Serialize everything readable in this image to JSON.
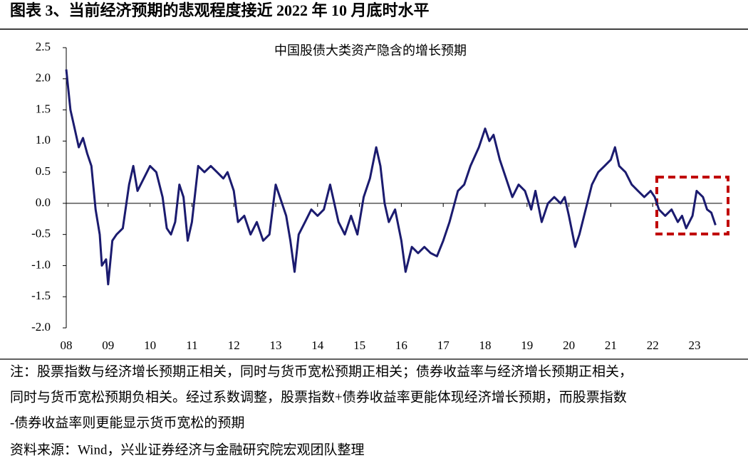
{
  "figure_title": "图表 3、当前经济预期的悲观程度接近 2022 年 10 月底时水平",
  "chart_data": {
    "type": "line",
    "title": "中国股债大类资产隐含的增长预期",
    "x": [
      2008.0,
      2008.1,
      2008.2,
      2008.3,
      2008.4,
      2008.5,
      2008.6,
      2008.7,
      2008.8,
      2008.85,
      2008.95,
      2009.0,
      2009.1,
      2009.2,
      2009.35,
      2009.5,
      2009.6,
      2009.7,
      2009.85,
      2010.0,
      2010.15,
      2010.3,
      2010.4,
      2010.5,
      2010.6,
      2010.7,
      2010.8,
      2010.9,
      2011.0,
      2011.15,
      2011.3,
      2011.45,
      2011.6,
      2011.75,
      2011.85,
      2012.0,
      2012.1,
      2012.25,
      2012.4,
      2012.55,
      2012.7,
      2012.85,
      2013.0,
      2013.1,
      2013.25,
      2013.35,
      2013.45,
      2013.55,
      2013.7,
      2013.85,
      2014.0,
      2014.15,
      2014.3,
      2014.5,
      2014.65,
      2014.8,
      2014.95,
      2015.1,
      2015.25,
      2015.4,
      2015.5,
      2015.6,
      2015.7,
      2015.85,
      2016.0,
      2016.1,
      2016.25,
      2016.4,
      2016.55,
      2016.7,
      2016.85,
      2017.0,
      2017.15,
      2017.35,
      2017.5,
      2017.65,
      2017.85,
      2018.0,
      2018.1,
      2018.2,
      2018.35,
      2018.5,
      2018.65,
      2018.8,
      2018.95,
      2019.1,
      2019.2,
      2019.35,
      2019.5,
      2019.65,
      2019.8,
      2019.9,
      2020.0,
      2020.15,
      2020.25,
      2020.4,
      2020.55,
      2020.7,
      2020.85,
      2021.0,
      2021.1,
      2021.2,
      2021.35,
      2021.5,
      2021.65,
      2021.8,
      2021.95,
      2022.05,
      2022.15,
      2022.3,
      2022.45,
      2022.6,
      2022.7,
      2022.8,
      2022.95,
      2023.05,
      2023.2,
      2023.3,
      2023.4,
      2023.5
    ],
    "series": [
      {
        "color": "#1b1b6f",
        "values": [
          2.15,
          1.5,
          1.2,
          0.9,
          1.05,
          0.8,
          0.6,
          -0.1,
          -0.5,
          -1.0,
          -0.9,
          -1.3,
          -0.6,
          -0.5,
          -0.4,
          0.3,
          0.6,
          0.2,
          0.4,
          0.6,
          0.5,
          0.1,
          -0.4,
          -0.5,
          -0.3,
          0.3,
          0.1,
          -0.6,
          -0.3,
          0.6,
          0.5,
          0.6,
          0.5,
          0.4,
          0.5,
          0.2,
          -0.3,
          -0.2,
          -0.5,
          -0.3,
          -0.6,
          -0.5,
          0.3,
          0.1,
          -0.2,
          -0.6,
          -1.1,
          -0.5,
          -0.3,
          -0.1,
          -0.2,
          -0.1,
          0.3,
          -0.3,
          -0.5,
          -0.2,
          -0.5,
          0.1,
          0.4,
          0.9,
          0.6,
          0.0,
          -0.3,
          -0.1,
          -0.6,
          -1.1,
          -0.7,
          -0.8,
          -0.7,
          -0.8,
          -0.85,
          -0.6,
          -0.3,
          0.2,
          0.3,
          0.6,
          0.9,
          1.2,
          1.0,
          1.1,
          0.7,
          0.4,
          0.1,
          0.3,
          0.2,
          -0.1,
          0.2,
          -0.3,
          0.0,
          0.1,
          0.0,
          0.1,
          -0.2,
          -0.7,
          -0.5,
          -0.1,
          0.3,
          0.5,
          0.6,
          0.7,
          0.9,
          0.6,
          0.5,
          0.3,
          0.2,
          0.1,
          0.2,
          0.1,
          -0.1,
          -0.2,
          -0.1,
          -0.3,
          -0.2,
          -0.4,
          -0.2,
          0.2,
          0.1,
          -0.1,
          -0.15,
          -0.35
        ]
      }
    ],
    "xlim": [
      2008,
      2024
    ],
    "xticks": [
      {
        "value": 2008,
        "label": "08"
      },
      {
        "value": 2009,
        "label": "09"
      },
      {
        "value": 2010,
        "label": "10"
      },
      {
        "value": 2011,
        "label": "11"
      },
      {
        "value": 2012,
        "label": "12"
      },
      {
        "value": 2013,
        "label": "13"
      },
      {
        "value": 2014,
        "label": "14"
      },
      {
        "value": 2015,
        "label": "15"
      },
      {
        "value": 2016,
        "label": "16"
      },
      {
        "value": 2017,
        "label": "17"
      },
      {
        "value": 2018,
        "label": "18"
      },
      {
        "value": 2019,
        "label": "19"
      },
      {
        "value": 2020,
        "label": "20"
      },
      {
        "value": 2021,
        "label": "21"
      },
      {
        "value": 2022,
        "label": "22"
      },
      {
        "value": 2023,
        "label": "23"
      }
    ],
    "ylim": [
      -2.0,
      2.5
    ],
    "yticks": [
      2.5,
      {
        "value": 2.0,
        "label": "2.0"
      },
      1.5,
      {
        "value": 1.0,
        "label": "1.0"
      },
      0.5,
      {
        "value": 0.0,
        "label": "0.0"
      },
      -0.5,
      {
        "value": -1.0,
        "label": "-1.0"
      },
      -1.5,
      {
        "value": -2.0,
        "label": "-2.0"
      }
    ],
    "grid": false
  },
  "notes": [
    "注：股票指数与经济增长预期正相关，同时与货币宽松预期正相关；债券收益率与经济增长预期正相关，",
    "同时与货币宽松预期负相关。经过系数调整，股票指数+债券收益率更能体现经济增长预期，而股票指数",
    "-债券收益率则更能显示货币宽松的预期"
  ],
  "source": "资料来源：Wind，兴业证券经济与金融研究院宏观团队整理"
}
